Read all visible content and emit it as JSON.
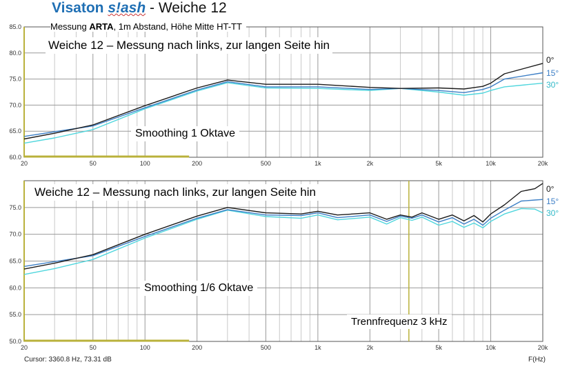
{
  "header": {
    "brand": "Visaton",
    "product": "s!ash",
    "title_rest": " - Weiche 12",
    "subtitle_pre": "Messung ",
    "subtitle_bold": "ARTA",
    "subtitle_post": ", 1m Abstand, Höhe Mitte  HT-TT"
  },
  "status": {
    "cursor": "Cursor: 3360.8 Hz, 73.31 dB",
    "xunit": "F(Hz)"
  },
  "colors": {
    "s0": "#1a1a1a",
    "s15": "#3d7fc6",
    "s30": "#4fd6dd",
    "grid": "#c8c8c8",
    "marker": "#b9b13a"
  },
  "chart_data": [
    {
      "type": "line",
      "title": "Weiche 12 – Messung nach links, zur langen Seite hin",
      "annotation": "Smoothing 1 Oktave",
      "xscale": "log",
      "xlim": [
        20,
        20000
      ],
      "ylim": [
        60,
        85
      ],
      "xticks": [
        "20",
        "50",
        "100",
        "200",
        "500",
        "1k",
        "2k",
        "5k",
        "10k",
        "20k"
      ],
      "yticks": [
        "85.0",
        "80.0",
        "75.0",
        "70.0",
        "65.0",
        "60.0"
      ],
      "x": [
        20,
        30,
        50,
        100,
        200,
        300,
        500,
        1000,
        2000,
        3000,
        5000,
        7000,
        9000,
        10000,
        12000,
        20000
      ],
      "series": [
        {
          "name": "0°",
          "values": [
            63.5,
            64.6,
            66.2,
            69.9,
            73.3,
            74.8,
            74.0,
            74.0,
            73.4,
            73.2,
            73.3,
            73.1,
            73.6,
            74.2,
            76.0,
            78.0
          ]
        },
        {
          "name": "15°",
          "values": [
            64.0,
            64.9,
            66.0,
            69.5,
            72.9,
            74.5,
            73.5,
            73.5,
            73.0,
            73.2,
            72.8,
            72.4,
            73.0,
            73.5,
            75.0,
            76.2
          ]
        },
        {
          "name": "30°",
          "values": [
            62.7,
            63.7,
            65.3,
            69.3,
            72.7,
            74.3,
            73.3,
            73.2,
            72.8,
            73.2,
            72.5,
            71.9,
            72.3,
            72.8,
            73.5,
            74.2
          ]
        }
      ]
    },
    {
      "type": "line",
      "title": "Weiche 12 – Messung nach links, zur langen Seite hin",
      "annotation": "Smoothing 1/6 Oktave",
      "marker_label": "Trennfrequenz 3 kHz",
      "marker_x": 3360.8,
      "xscale": "log",
      "xlim": [
        20,
        20000
      ],
      "ylim": [
        50,
        80
      ],
      "xticks": [
        "20",
        "50",
        "100",
        "200",
        "500",
        "1k",
        "2k",
        "5k",
        "10k",
        "20k"
      ],
      "yticks": [
        "75.0",
        "70.0",
        "65.0",
        "60.0",
        "55.0",
        "50.0"
      ],
      "x": [
        20,
        30,
        50,
        100,
        200,
        300,
        500,
        800,
        1000,
        1300,
        2000,
        2500,
        3000,
        3500,
        4000,
        5000,
        6000,
        7000,
        8000,
        9000,
        10000,
        12000,
        15000,
        18000,
        20000
      ],
      "series": [
        {
          "name": "0°",
          "values": [
            63.5,
            64.6,
            66.2,
            70.0,
            73.4,
            75.0,
            74.0,
            73.8,
            74.3,
            73.6,
            74.0,
            72.8,
            73.6,
            73.2,
            74.0,
            72.8,
            73.6,
            72.5,
            73.5,
            72.3,
            73.8,
            75.5,
            78.0,
            78.5,
            79.5
          ]
        },
        {
          "name": "15°",
          "values": [
            64.0,
            64.9,
            66.0,
            69.6,
            73.0,
            74.6,
            73.6,
            73.5,
            74.0,
            73.1,
            73.6,
            72.4,
            73.4,
            73.0,
            73.6,
            72.3,
            73.1,
            71.9,
            72.8,
            71.7,
            73.0,
            74.5,
            76.2,
            76.4,
            76.5
          ]
        },
        {
          "name": "30°",
          "values": [
            62.5,
            63.6,
            65.3,
            69.3,
            72.8,
            74.5,
            73.3,
            73.0,
            73.6,
            72.7,
            73.2,
            71.9,
            73.1,
            72.6,
            73.2,
            71.7,
            72.4,
            71.3,
            72.1,
            71.2,
            72.4,
            73.8,
            74.8,
            74.7,
            74.0
          ]
        }
      ]
    }
  ]
}
